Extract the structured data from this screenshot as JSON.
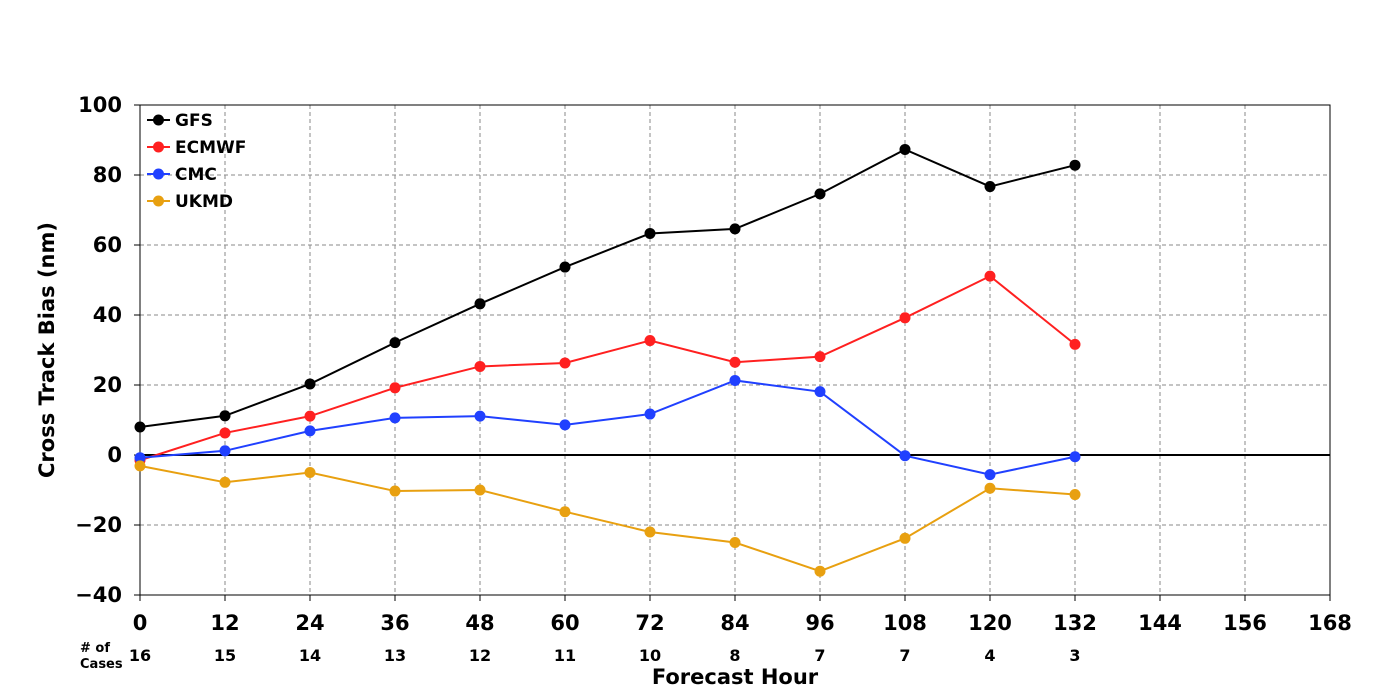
{
  "chart_data": {
    "type": "line",
    "title": "",
    "xlabel": "Forecast Hour",
    "ylabel": "Cross Track Bias (nm)",
    "xlim": [
      0,
      168
    ],
    "ylim": [
      -40,
      100
    ],
    "x_ticks": [
      "0",
      "12",
      "24",
      "36",
      "48",
      "60",
      "72",
      "84",
      "96",
      "108",
      "120",
      "132",
      "144",
      "156",
      "168"
    ],
    "y_ticks": [
      "100",
      "80",
      "60",
      "40",
      "20",
      "0",
      "−20",
      "−40"
    ],
    "grid": true,
    "legend_position": "top-left",
    "cases_label": "# of Cases",
    "cases_label_lines": [
      "# of",
      "Cases"
    ],
    "cases": [
      "16",
      "15",
      "14",
      "13",
      "12",
      "11",
      "10",
      "8",
      "7",
      "7",
      "4",
      "3"
    ],
    "x": [
      0,
      12,
      24,
      36,
      48,
      60,
      72,
      84,
      96,
      108,
      120,
      132
    ],
    "series": [
      {
        "name": "GFS",
        "color": "#000000",
        "values": [
          8,
          11.2,
          20.3,
          32.1,
          43.2,
          53.7,
          63.3,
          64.6,
          74.6,
          87.3,
          76.7,
          82.8
        ]
      },
      {
        "name": "ECMWF",
        "color": "#ff2020",
        "values": [
          -1.5,
          6.3,
          11.1,
          19.2,
          25.3,
          26.3,
          32.7,
          26.5,
          28.1,
          39.2,
          51.1,
          31.6
        ]
      },
      {
        "name": "CMC",
        "color": "#2040ff",
        "values": [
          -0.8,
          1.2,
          6.9,
          10.6,
          11.1,
          8.6,
          11.7,
          21.3,
          18.1,
          -0.2,
          -5.6,
          -0.5
        ]
      },
      {
        "name": "UKMD",
        "color": "#e8a010",
        "values": [
          -3.1,
          -7.8,
          -5,
          -10.3,
          -10,
          -16.2,
          -22,
          -25,
          -33.2,
          -23.8,
          -9.5,
          -11.3
        ]
      }
    ]
  }
}
